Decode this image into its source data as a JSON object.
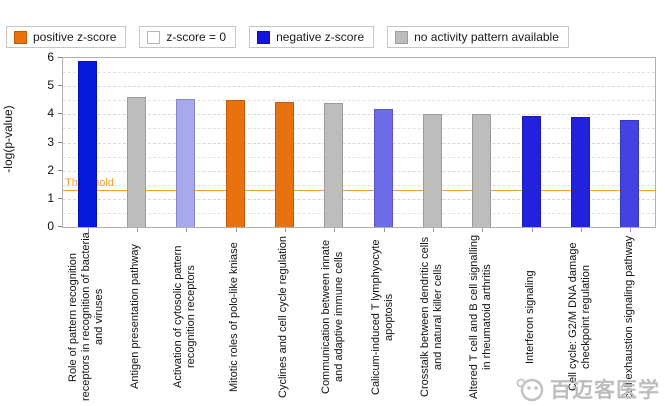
{
  "legend": {
    "items": [
      {
        "label": "positive z-score",
        "color": "#E8720E",
        "border": "#c05a08"
      },
      {
        "label": "z-score = 0",
        "color": "#FFFFFF",
        "border": "#b8b8b8"
      },
      {
        "label": "negative z-score",
        "color": "#1414DC",
        "border": "#1010a8"
      },
      {
        "label": "no activity pattern available",
        "color": "#BDBDBD",
        "border": "#9e9e9e"
      }
    ]
  },
  "chart_data": {
    "type": "bar",
    "title": "",
    "xlabel": "",
    "ylabel": "-log(p-value)",
    "ylim": [
      0,
      6
    ],
    "yticks": [
      0,
      1,
      2,
      3,
      4,
      5,
      6
    ],
    "grid": "dashed horizontal every 0.5, major every 1.0",
    "threshold": {
      "value": 1.3,
      "label": "Threshold",
      "color": "#f0a030"
    },
    "categories": [
      "Role of pattern recognition receptors in recognition of bacteria and viruses",
      "Antigen presentation pathway",
      "Activation of cytosolic pattern recognition receptors",
      "Mitotic roles of polo-like kniase",
      "Cyclines and cell cycle regulation",
      "Communication between innate and adaptive immune cells",
      "Calicum-induced T lymphyocyte apoptosis",
      "Crosstalk between dendritic cells and natural killer cells",
      "Altered T cell and B cell signalling in rheumatoid arthritis",
      "Interferon signaling",
      "Cell cycle: G2/M DNA damage checkpoint regulation",
      "cell exhaustion signaling pathway"
    ],
    "values": [
      5.9,
      4.6,
      4.55,
      4.5,
      4.45,
      4.4,
      4.2,
      4.0,
      4.0,
      3.95,
      3.9,
      3.8
    ],
    "bar_colors": [
      "#0618D8",
      "#BDBDBD",
      "#A8A8EC",
      "#E8720E",
      "#E8720E",
      "#BDBDBD",
      "#6C6CE8",
      "#BDBDBD",
      "#BDBDBD",
      "#2222DC",
      "#2222DC",
      "#4343E2"
    ],
    "bar_categories_class": [
      "negative z-score",
      "no activity pattern available",
      "negative z-score",
      "positive z-score",
      "positive z-score",
      "no activity pattern available",
      "negative z-score",
      "no activity pattern available",
      "no activity pattern available",
      "negative z-score",
      "negative z-score",
      "negative z-score"
    ]
  },
  "watermark": {
    "text": "百迈客医学"
  }
}
